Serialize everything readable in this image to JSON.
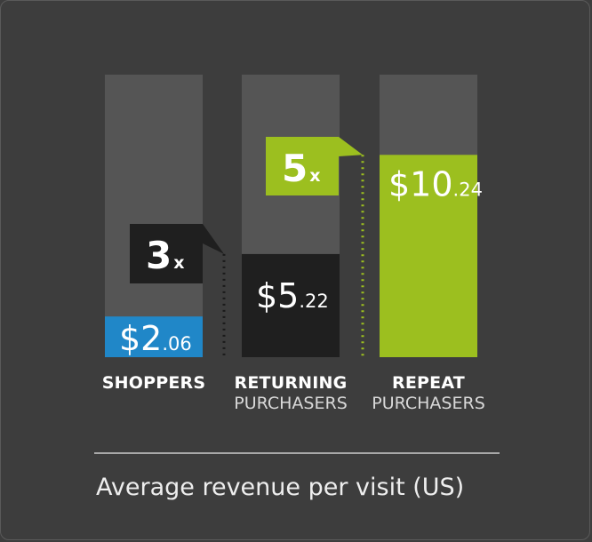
{
  "chart_data": {
    "type": "bar",
    "categories": [
      {
        "line1": "SHOPPERS",
        "line2": ""
      },
      {
        "line1": "RETURNING",
        "line2": "PURCHASERS"
      },
      {
        "line1": "REPEAT",
        "line2": "PURCHASERS"
      }
    ],
    "values": [
      2.06,
      5.22,
      10.24
    ],
    "value_labels": [
      {
        "main": "$2",
        "sub": ".06"
      },
      {
        "main": "$5",
        "sub": ".22"
      },
      {
        "main": "$10",
        "sub": ".24"
      }
    ],
    "multipliers": [
      {
        "num": "3",
        "x": "x"
      },
      {
        "num": "5",
        "x": "x"
      }
    ],
    "caption": "Average revenue per visit (US)",
    "ylim": [
      0,
      14.3
    ],
    "colors": {
      "background": "#3d3d3d",
      "track": "#555555",
      "bars": [
        "#2087c8",
        "#1f1f1f",
        "#9cbf1f"
      ],
      "multiplier_boxes": [
        "#1f1f1f",
        "#9cbf1f"
      ],
      "divider": "#a8a8a8"
    }
  }
}
